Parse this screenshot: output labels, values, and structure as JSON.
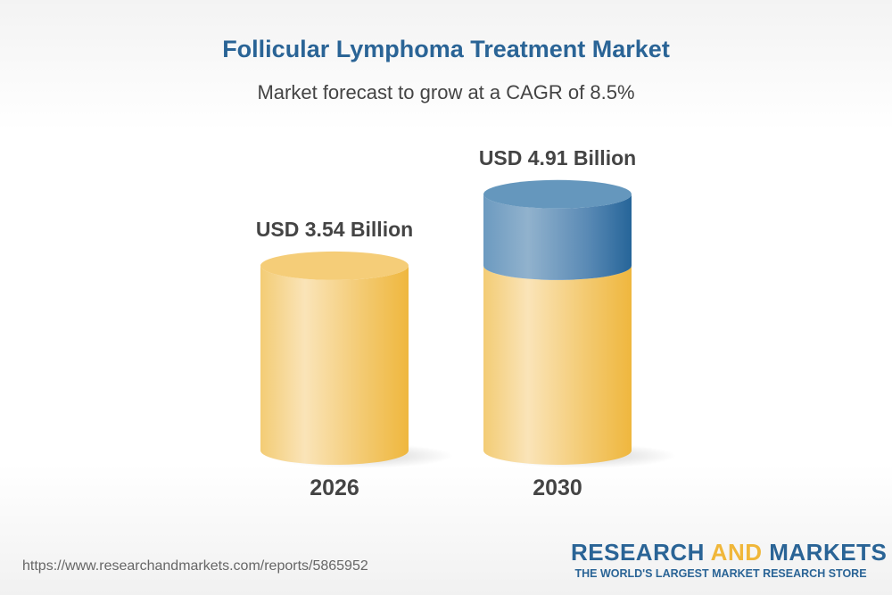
{
  "title": "Follicular Lymphoma Treatment Market",
  "subtitle": "Market forecast to grow at a CAGR of 8.5%",
  "chart_data": {
    "type": "bar",
    "style": "3d-cylinder",
    "categories": [
      "2026",
      "2030"
    ],
    "values": [
      3.54,
      4.91
    ],
    "data_labels": [
      "USD 3.54 Billion",
      "USD 4.91 Billion"
    ],
    "unit": "USD Billion",
    "cagr": "8.5%",
    "colors": {
      "base": "#f0b73a",
      "growth": "#2a6496"
    }
  },
  "footer": {
    "url": "https://www.researchandmarkets.com/reports/5865952",
    "logo_part1": "RESEARCH ",
    "logo_part2": "AND",
    "logo_part3": " MARKETS",
    "tagline": "THE WORLD'S LARGEST MARKET RESEARCH STORE"
  }
}
